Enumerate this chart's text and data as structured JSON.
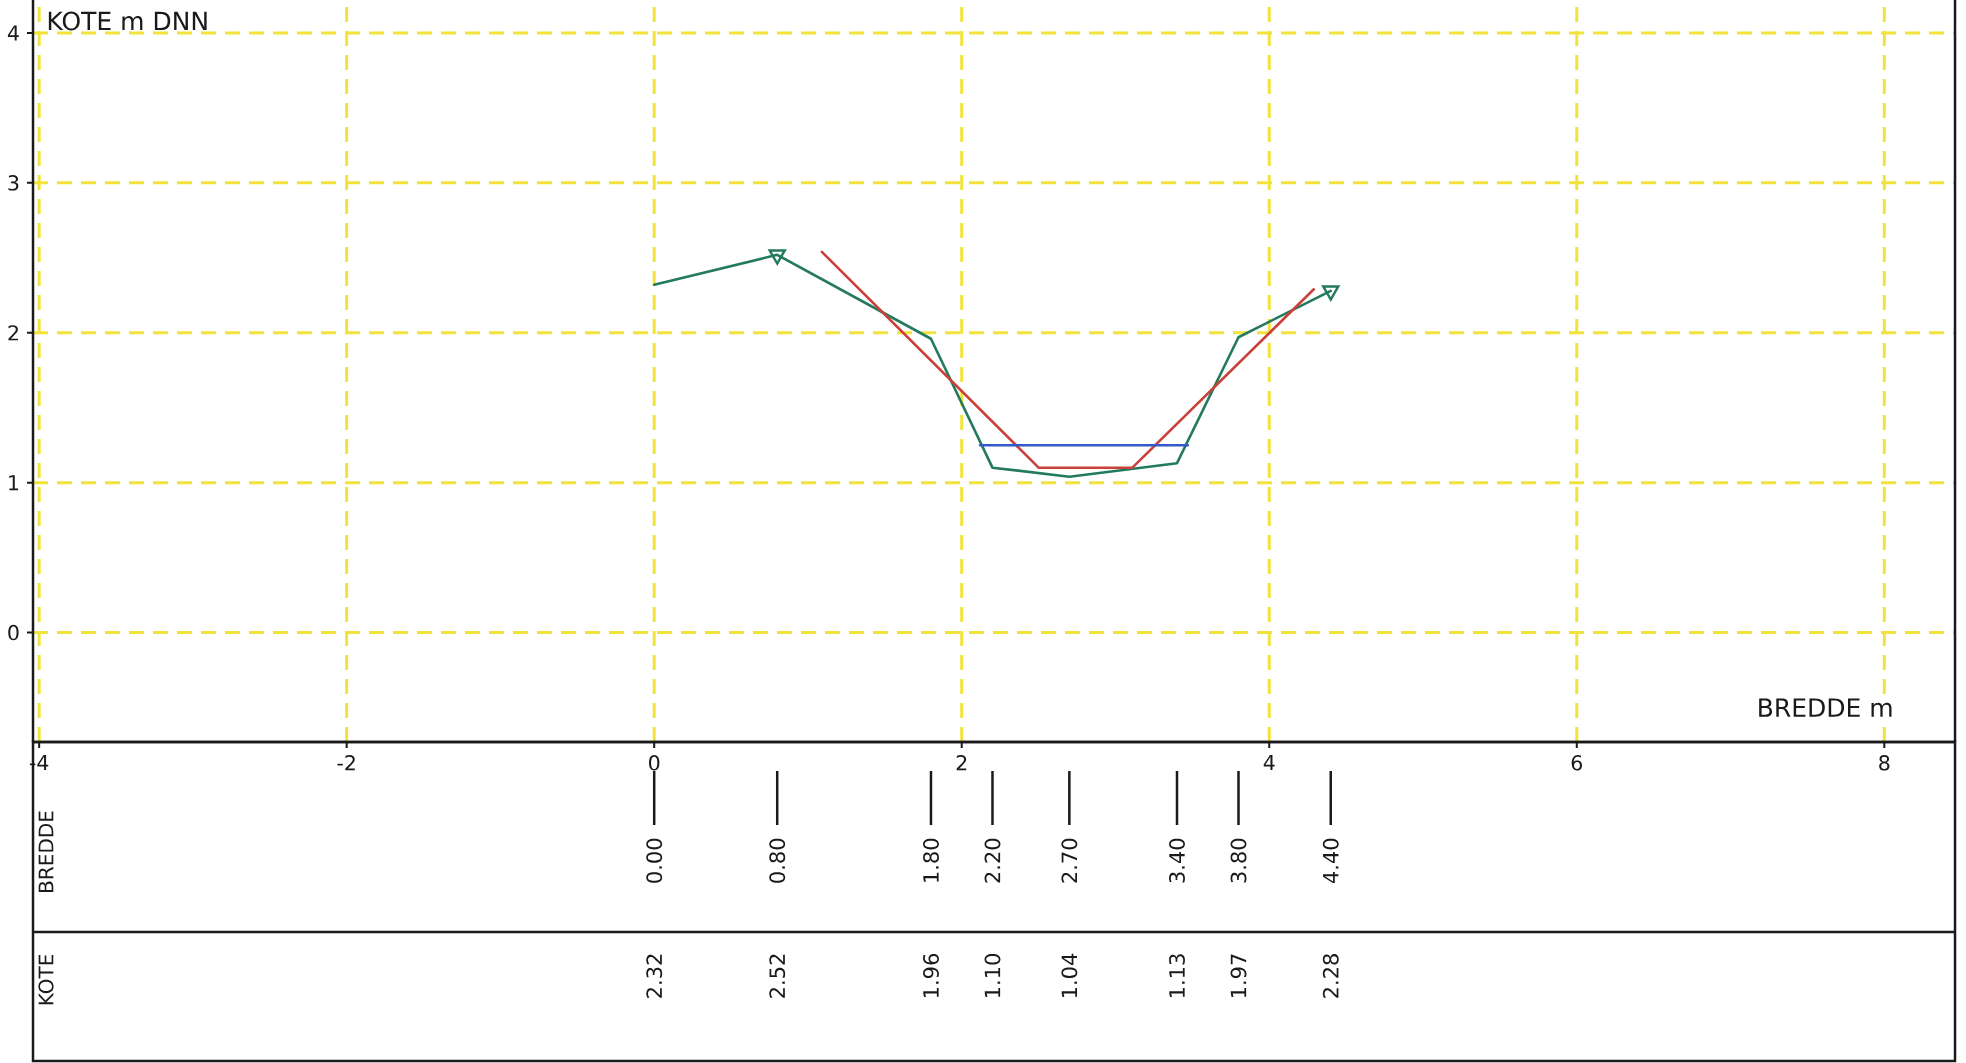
{
  "chart_data": {
    "type": "line",
    "xlabel": "BREDDE m",
    "ylabel": "KOTE m DNN",
    "xlim": [
      -4.04,
      8.46
    ],
    "ylim": [
      -0.73,
      4.22
    ],
    "xticks": [
      -4,
      -2,
      0,
      2,
      4,
      6,
      8
    ],
    "yticks": [
      0,
      1,
      2,
      3,
      4
    ],
    "grid": true,
    "x2label": "BREDDE",
    "x2lim": [
      -4.04,
      8.46
    ],
    "x2ticks": [
      {
        "value": 0,
        "label": "0.00"
      },
      {
        "value": 0.8,
        "label": "0.80"
      },
      {
        "value": 1.8,
        "label": "1.80"
      },
      {
        "value": 2.2,
        "label": "2.20"
      },
      {
        "value": 2.7,
        "label": "2.70"
      },
      {
        "value": 3.4,
        "label": "3.40"
      },
      {
        "value": 3.8,
        "label": "3.80"
      },
      {
        "value": 4.4,
        "label": "4.40"
      }
    ],
    "annotations": [
      "KOTE",
      "2.32",
      "2.52",
      "1.96",
      "1.10",
      "1.04",
      "1.13",
      "1.97",
      "2.28"
    ],
    "series": [
      {
        "color": "#237a5c",
        "x": [
          0,
          0.8,
          1.8,
          2.2,
          2.7,
          3.4,
          3.8,
          4.4
        ],
        "values": [
          2.32,
          2.52,
          1.96,
          1.1,
          1.04,
          1.13,
          1.97,
          2.28
        ]
      },
      {
        "color": "#c8413a",
        "x": [
          1.09,
          2.5,
          3.11,
          4.29
        ],
        "values": [
          2.54,
          1.1,
          1.1,
          2.29
        ]
      },
      {
        "color": "#3558cc",
        "x": [
          2.12,
          3.47
        ],
        "values": [
          1.25,
          1.25
        ]
      },
      {
        "type": "scatter",
        "color": "#237a5c",
        "marker": "triangle",
        "x": [
          0.8,
          4.4
        ],
        "values": [
          2.52,
          2.28
        ]
      }
    ]
  }
}
